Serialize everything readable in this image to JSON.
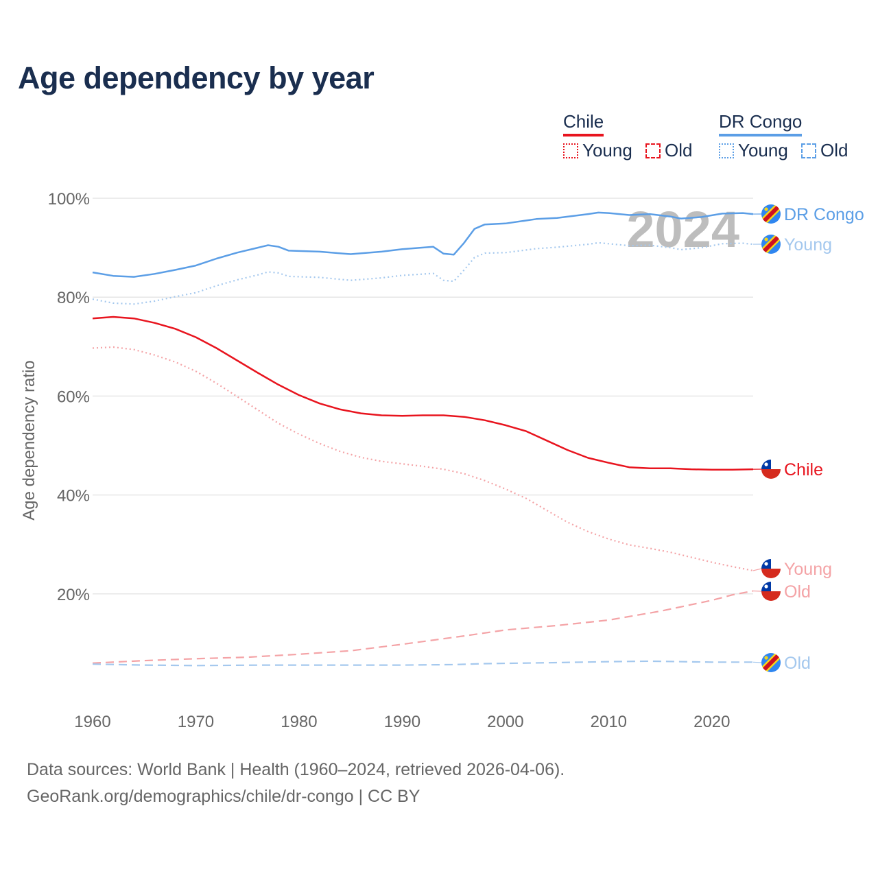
{
  "title": "Age dependency by year",
  "legend": {
    "groups": [
      {
        "name": "Chile",
        "color": "#e8141e",
        "items": [
          {
            "label": "Young",
            "style": "dotted"
          },
          {
            "label": "Old",
            "style": "dashed"
          }
        ]
      },
      {
        "name": "DR Congo",
        "color": "#5b9ee6",
        "items": [
          {
            "label": "Young",
            "style": "dotted"
          },
          {
            "label": "Old",
            "style": "dashed"
          }
        ]
      }
    ]
  },
  "year_watermark": "2024",
  "footer": {
    "line1": "Data sources: World Bank | Health (1960–2024, retrieved 2026-04-06).",
    "line2": "GeoRank.org/demographics/chile/dr-congo | CC BY"
  },
  "chart_data": {
    "type": "line",
    "title": "Age dependency by year",
    "xlabel": "",
    "ylabel": "Age dependency ratio",
    "xlim": [
      1960,
      2024
    ],
    "ylim": [
      0,
      100
    ],
    "x_ticks": [
      "1960",
      "1970",
      "1980",
      "1990",
      "2000",
      "2010",
      "2020"
    ],
    "y_ticks": [
      "20%",
      "40%",
      "60%",
      "80%",
      "100%"
    ],
    "grid": true,
    "series": [
      {
        "name": "DR Congo",
        "end_label": "DR Congo",
        "country": "DR Congo",
        "kind": "total",
        "color": "#5b9ee6",
        "dash": "solid",
        "points": [
          [
            1960,
            85.0
          ],
          [
            1962,
            84.3
          ],
          [
            1964,
            84.1
          ],
          [
            1966,
            84.7
          ],
          [
            1968,
            85.5
          ],
          [
            1970,
            86.4
          ],
          [
            1972,
            87.8
          ],
          [
            1974,
            89.0
          ],
          [
            1976,
            90.0
          ],
          [
            1977,
            90.5
          ],
          [
            1978,
            90.2
          ],
          [
            1979,
            89.4
          ],
          [
            1982,
            89.2
          ],
          [
            1985,
            88.7
          ],
          [
            1988,
            89.2
          ],
          [
            1990,
            89.7
          ],
          [
            1993,
            90.2
          ],
          [
            1994,
            88.8
          ],
          [
            1995,
            88.6
          ],
          [
            1996,
            91.0
          ],
          [
            1997,
            93.8
          ],
          [
            1998,
            94.7
          ],
          [
            2000,
            94.9
          ],
          [
            2003,
            95.8
          ],
          [
            2005,
            96.0
          ],
          [
            2008,
            96.8
          ],
          [
            2009,
            97.1
          ],
          [
            2010,
            97.0
          ],
          [
            2012,
            96.6
          ],
          [
            2014,
            96.8
          ],
          [
            2016,
            96.3
          ],
          [
            2017,
            95.9
          ],
          [
            2019,
            96.2
          ],
          [
            2021,
            96.9
          ],
          [
            2023,
            97.0
          ],
          [
            2024,
            96.8
          ]
        ]
      },
      {
        "name": "DR Congo Young",
        "end_label": "Young",
        "country": "DR Congo",
        "kind": "young",
        "color": "#a4c8ee",
        "dash": "dotted",
        "points": [
          [
            1960,
            79.6
          ],
          [
            1962,
            78.8
          ],
          [
            1964,
            78.6
          ],
          [
            1966,
            79.2
          ],
          [
            1968,
            80.1
          ],
          [
            1970,
            80.9
          ],
          [
            1972,
            82.3
          ],
          [
            1974,
            83.5
          ],
          [
            1976,
            84.5
          ],
          [
            1977,
            85.1
          ],
          [
            1978,
            84.9
          ],
          [
            1979,
            84.2
          ],
          [
            1982,
            84.0
          ],
          [
            1985,
            83.4
          ],
          [
            1988,
            83.9
          ],
          [
            1990,
            84.4
          ],
          [
            1993,
            84.8
          ],
          [
            1994,
            83.4
          ],
          [
            1995,
            83.2
          ],
          [
            1996,
            85.5
          ],
          [
            1997,
            88.0
          ],
          [
            1998,
            88.9
          ],
          [
            2000,
            89.0
          ],
          [
            2003,
            89.8
          ],
          [
            2005,
            90.1
          ],
          [
            2008,
            90.7
          ],
          [
            2009,
            91.0
          ],
          [
            2010,
            90.8
          ],
          [
            2012,
            90.4
          ],
          [
            2014,
            90.5
          ],
          [
            2016,
            90.0
          ],
          [
            2017,
            89.6
          ],
          [
            2019,
            90.0
          ],
          [
            2021,
            90.8
          ],
          [
            2023,
            90.9
          ],
          [
            2024,
            90.7
          ]
        ]
      },
      {
        "name": "Chile",
        "end_label": "Chile",
        "country": "Chile",
        "kind": "total",
        "color": "#e8141e",
        "dash": "solid",
        "points": [
          [
            1960,
            75.7
          ],
          [
            1962,
            76.0
          ],
          [
            1964,
            75.7
          ],
          [
            1966,
            74.8
          ],
          [
            1968,
            73.6
          ],
          [
            1970,
            71.9
          ],
          [
            1972,
            69.7
          ],
          [
            1974,
            67.2
          ],
          [
            1976,
            64.7
          ],
          [
            1978,
            62.3
          ],
          [
            1980,
            60.2
          ],
          [
            1982,
            58.5
          ],
          [
            1984,
            57.3
          ],
          [
            1986,
            56.5
          ],
          [
            1988,
            56.1
          ],
          [
            1990,
            56.0
          ],
          [
            1992,
            56.1
          ],
          [
            1994,
            56.1
          ],
          [
            1996,
            55.8
          ],
          [
            1998,
            55.1
          ],
          [
            2000,
            54.1
          ],
          [
            2002,
            52.9
          ],
          [
            2004,
            51.0
          ],
          [
            2006,
            49.1
          ],
          [
            2008,
            47.5
          ],
          [
            2010,
            46.5
          ],
          [
            2012,
            45.6
          ],
          [
            2014,
            45.4
          ],
          [
            2016,
            45.4
          ],
          [
            2018,
            45.2
          ],
          [
            2020,
            45.1
          ],
          [
            2022,
            45.1
          ],
          [
            2024,
            45.2
          ]
        ]
      },
      {
        "name": "Chile Young",
        "end_label": "Young",
        "country": "Chile",
        "kind": "young",
        "color": "#f4a3a6",
        "dash": "dotted",
        "points": [
          [
            1960,
            69.7
          ],
          [
            1962,
            69.9
          ],
          [
            1964,
            69.4
          ],
          [
            1966,
            68.3
          ],
          [
            1968,
            66.9
          ],
          [
            1970,
            65.0
          ],
          [
            1972,
            62.6
          ],
          [
            1974,
            59.9
          ],
          [
            1976,
            57.2
          ],
          [
            1978,
            54.5
          ],
          [
            1980,
            52.3
          ],
          [
            1982,
            50.4
          ],
          [
            1984,
            48.8
          ],
          [
            1986,
            47.6
          ],
          [
            1988,
            46.8
          ],
          [
            1990,
            46.3
          ],
          [
            1992,
            45.8
          ],
          [
            1994,
            45.2
          ],
          [
            1996,
            44.3
          ],
          [
            1998,
            42.9
          ],
          [
            2000,
            41.2
          ],
          [
            2002,
            39.3
          ],
          [
            2004,
            36.9
          ],
          [
            2006,
            34.5
          ],
          [
            2008,
            32.6
          ],
          [
            2010,
            31.1
          ],
          [
            2012,
            29.9
          ],
          [
            2014,
            29.2
          ],
          [
            2016,
            28.4
          ],
          [
            2018,
            27.4
          ],
          [
            2020,
            26.4
          ],
          [
            2022,
            25.5
          ],
          [
            2024,
            24.7
          ]
        ]
      },
      {
        "name": "Chile Old",
        "end_label": "Old",
        "country": "Chile",
        "kind": "old",
        "color": "#f4a3a6",
        "dash": "dashed",
        "points": [
          [
            1960,
            6.0
          ],
          [
            1965,
            6.5
          ],
          [
            1970,
            6.9
          ],
          [
            1975,
            7.2
          ],
          [
            1980,
            7.8
          ],
          [
            1985,
            8.5
          ],
          [
            1990,
            9.8
          ],
          [
            1996,
            11.5
          ],
          [
            2000,
            12.7
          ],
          [
            2005,
            13.6
          ],
          [
            2010,
            14.7
          ],
          [
            2015,
            16.5
          ],
          [
            2020,
            18.7
          ],
          [
            2022,
            19.8
          ],
          [
            2024,
            20.6
          ]
        ]
      },
      {
        "name": "DR Congo Old",
        "end_label": "Old",
        "country": "DR Congo",
        "kind": "old",
        "color": "#a4c8ee",
        "dash": "dashed",
        "points": [
          [
            1960,
            5.8
          ],
          [
            1965,
            5.6
          ],
          [
            1970,
            5.5
          ],
          [
            1977,
            5.6
          ],
          [
            1985,
            5.6
          ],
          [
            1990,
            5.6
          ],
          [
            1995,
            5.7
          ],
          [
            1998,
            5.9
          ],
          [
            2005,
            6.1
          ],
          [
            2010,
            6.3
          ],
          [
            2014,
            6.4
          ],
          [
            2020,
            6.2
          ],
          [
            2024,
            6.2
          ]
        ]
      }
    ]
  }
}
